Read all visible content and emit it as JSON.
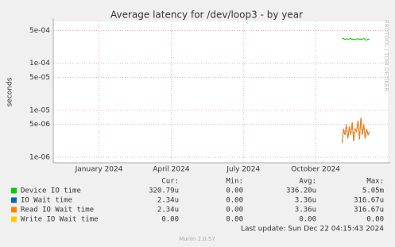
{
  "chart_data": {
    "type": "line",
    "title": "Average latency for /dev/loop3 - by year",
    "y_label": "seconds",
    "side_text": "RRDTOOL / TOBI OETIKER",
    "log_y": true,
    "grid": true,
    "ylim": [
      7.6e-07,
      0.00078
    ],
    "yticks": [
      {
        "value": 1e-06,
        "label": "1e-06"
      },
      {
        "value": 5e-06,
        "label": "5e-06"
      },
      {
        "value": 1e-05,
        "label": "1e-05"
      },
      {
        "value": 5e-05,
        "label": "5e-05"
      },
      {
        "value": 0.0001,
        "label": "1e-04"
      },
      {
        "value": 0.0005,
        "label": "5e-04"
      }
    ],
    "xlim": [
      -1.9,
      12.0
    ],
    "xticks": [
      {
        "value": 0,
        "label": "January 2024"
      },
      {
        "value": 3,
        "label": "April 2024"
      },
      {
        "value": 6,
        "label": "July 2024"
      },
      {
        "value": 9,
        "label": "October 2024"
      }
    ],
    "x": [
      10.1,
      10.16,
      10.22,
      10.28,
      10.34,
      10.4,
      10.46,
      10.52,
      10.58,
      10.64,
      10.7,
      10.76,
      10.82,
      10.88,
      10.94,
      11.0,
      11.06,
      11.12,
      11.18,
      11.24
    ],
    "series": [
      {
        "name": "Device IO time",
        "color": "#00cc00",
        "values": [
          0.00033,
          0.00034,
          0.00032,
          0.000335,
          0.000325,
          0.00033,
          0.00034,
          0.00032,
          0.00033,
          0.000315,
          0.00033,
          0.000335,
          0.00032,
          0.00033,
          0.000325,
          0.00034,
          0.00032,
          0.00031,
          0.00033,
          0.00032
        ]
      },
      {
        "name": "IO Wait time",
        "color": "#0066b3",
        "values": [
          2e-06,
          4e-06,
          3e-06,
          5e-06,
          2.5e-06,
          4.5e-06,
          3e-06,
          5.5e-06,
          2.2e-06,
          4e-06,
          3.5e-06,
          6e-06,
          2.4e-06,
          7e-06,
          3e-06,
          5e-06,
          2.5e-06,
          4e-06,
          3e-06,
          3.5e-06
        ]
      },
      {
        "name": "Read IO Wait time",
        "color": "#ff8000",
        "values": [
          2e-06,
          4e-06,
          3e-06,
          5e-06,
          2.5e-06,
          4.5e-06,
          3e-06,
          5.5e-06,
          2.2e-06,
          4e-06,
          3.5e-06,
          6e-06,
          2.4e-06,
          7e-06,
          3e-06,
          5e-06,
          2.5e-06,
          4e-06,
          3e-06,
          3.5e-06
        ]
      },
      {
        "name": "Write IO Wait time",
        "color": "#ffcc00"
      }
    ],
    "legend_table": {
      "headers": [
        "Cur:",
        "Min:",
        "Avg:",
        "Max:"
      ],
      "rows": [
        [
          "320.79u",
          "0.00",
          "336.20u",
          "5.05m"
        ],
        [
          "2.34u",
          "0.00",
          "3.36u",
          "316.67u"
        ],
        [
          "2.34u",
          "0.00",
          "3.36u",
          "316.67u"
        ],
        [
          "0.00",
          "0.00",
          "0.00",
          "0.00"
        ]
      ]
    },
    "last_update": "Last update: Sun Dec 22 04:15:43 2024",
    "footer": "Munin 2.0.57"
  }
}
